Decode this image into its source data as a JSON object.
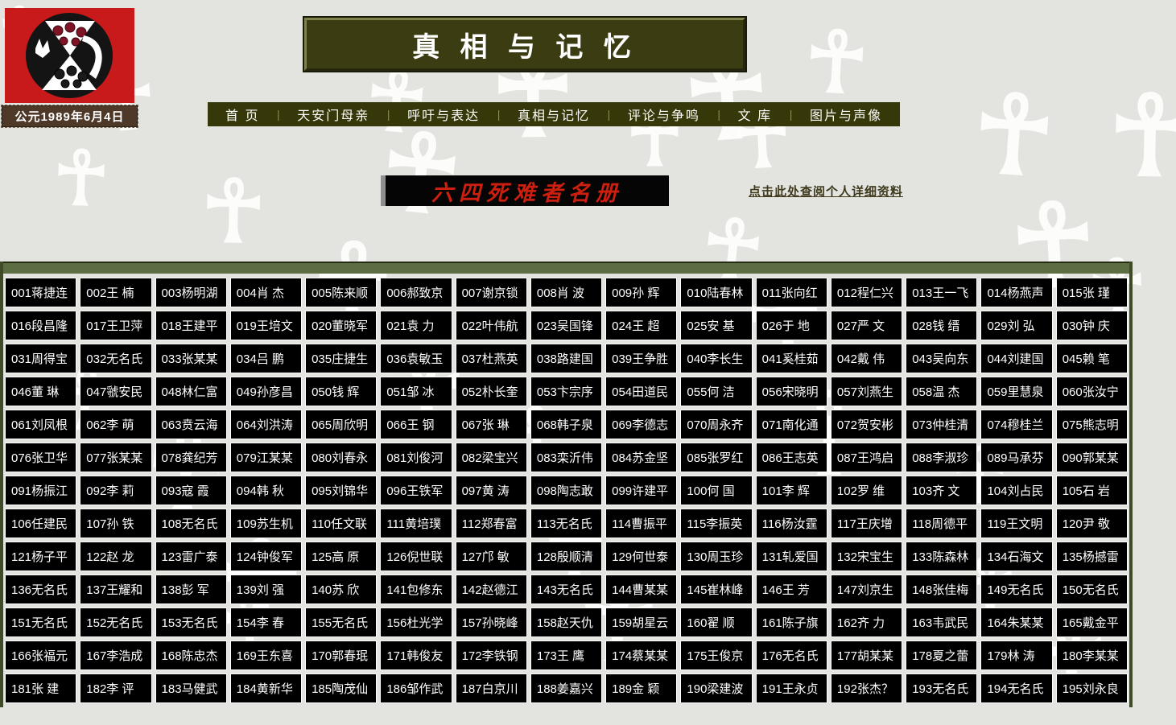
{
  "header": {
    "date_label": "公元1989年6月4日",
    "site_title": "真 相 与 记 忆",
    "nav_separator": "|",
    "nav_items": [
      "首  页",
      "天安门母亲",
      "呼吁与表达",
      "真相与记忆",
      "评论与争鸣",
      "文  库",
      "图片与声像"
    ]
  },
  "content": {
    "roster_banner": "六四死难者名册",
    "detail_link": "点击此处查阅个人详细资料"
  },
  "roster": {
    "entries": [
      "001蒋捷连",
      "002王 楠",
      "003杨明湖",
      "004肖 杰",
      "005陈来顺",
      "006郝致京",
      "007谢京锁",
      "008肖 波",
      "009孙 辉",
      "010陆春林",
      "011张向红",
      "012程仁兴",
      "013王一飞",
      "014杨燕声",
      "015张 瑾",
      "016段昌隆",
      "017王卫萍",
      "018王建平",
      "019王培文",
      "020董晓军",
      "021袁 力",
      "022叶伟航",
      "023吴国锋",
      "024王 超",
      "025安 基",
      "026于 地",
      "027严 文",
      "028钱 缙",
      "029刘 弘",
      "030钟 庆",
      "031周得宝",
      "032无名氏",
      "033张某某",
      "034吕 鹏",
      "035庄捷生",
      "036袁敏玉",
      "037杜燕英",
      "038路建国",
      "039王争胜",
      "040李长生",
      "041奚桂茹",
      "042戴 伟",
      "043吴向东",
      "044刘建国",
      "045赖 笔",
      "046董 琳",
      "047虢安民",
      "048林仁富",
      "049孙彦昌",
      "050钱 辉",
      "051邹 冰",
      "052朴长奎",
      "053卞宗序",
      "054田道民",
      "055何 洁",
      "056宋晓明",
      "057刘燕生",
      "058温 杰",
      "059里慧泉",
      "060张汝宁",
      "061刘凤根",
      "062李 萌",
      "063贲云海",
      "064刘洪涛",
      "065周欣明",
      "066王 钢",
      "067张 琳",
      "068韩子泉",
      "069李德志",
      "070周永齐",
      "071南化通",
      "072贺安彬",
      "073仲桂清",
      "074穆桂兰",
      "075熊志明",
      "076张卫华",
      "077张某某",
      "078龚纪芳",
      "079江某某",
      "080刘春永",
      "081刘俊河",
      "082梁宝兴",
      "083栾沂伟",
      "084苏金坚",
      "085张罗红",
      "086王志英",
      "087王鸿启",
      "088李淑珍",
      "089马承芬",
      "090郭某某",
      "091杨振江",
      "092李 莉",
      "093寇 霞",
      "094韩 秋",
      "095刘锦华",
      "096王铁军",
      "097黄 涛",
      "098陶志敢",
      "099许建平",
      "100何 国",
      "101李 辉",
      "102罗 维",
      "103齐 文",
      "104刘占民",
      "105石 岩",
      "106任建民",
      "107孙 铁",
      "108无名氏",
      "109苏生机",
      "110任文联",
      "111黄培璞",
      "112郑春富",
      "113无名氏",
      "114曹振平",
      "115李振英",
      "116杨汝霆",
      "117王庆增",
      "118周德平",
      "119王文明",
      "120尹 敬",
      "121杨子平",
      "122赵 龙",
      "123雷广泰",
      "124钟俊军",
      "125高 原",
      "126倪世联",
      "127邝 敏",
      "128殷顺清",
      "129何世泰",
      "130周玉珍",
      "131轧爱国",
      "132宋宝生",
      "133陈森林",
      "134石海文",
      "135杨撼雷",
      "136无名氏",
      "137王耀和",
      "138彭 军",
      "139刘 强",
      "140苏 欣",
      "141包修东",
      "142赵德江",
      "143无名氏",
      "144曹某某",
      "145崔林峰",
      "146王 芳",
      "147刘京生",
      "148张佳梅",
      "149无名氏",
      "150无名氏",
      "151无名氏",
      "152无名氏",
      "153无名氏",
      "154李 春",
      "155无名氏",
      "156杜光学",
      "157孙晓峰",
      "158赵天仇",
      "159胡星云",
      "160翟 顺",
      "161陈子旗",
      "162齐 力",
      "163韦武民",
      "164朱某某",
      "165戴金平",
      "166张福元",
      "167李浩成",
      "168陈忠杰",
      "169王东喜",
      "170郭春珉",
      "171韩俊友",
      "172李铁钢",
      "173王 鹰",
      "174蔡某某",
      "175王俊京",
      "176无名氏",
      "177胡某某",
      "178夏之蕾",
      "179林 涛",
      "180李某某",
      "181张 建",
      "182李 评",
      "183马健武",
      "184黄新华",
      "185陶茂仙",
      "186邹作武",
      "187白京川",
      "188姜嘉兴",
      "189金 颖",
      "190梁建波",
      "191王永贞",
      "192张杰？",
      "193无名氏",
      "194无名氏",
      "195刘永良"
    ]
  },
  "decor": {
    "pattern_glyph": "☥"
  },
  "colors": {
    "page_bg": "#e3e3e0",
    "olive_dark": "#37380a",
    "olive_bar": "#5c6d44",
    "banner_red": "#cc1f10",
    "logo_red": "#c81a1a",
    "cell_bg": "#000000",
    "cell_border": "#ffffff",
    "link_color": "#3f3a1c"
  }
}
